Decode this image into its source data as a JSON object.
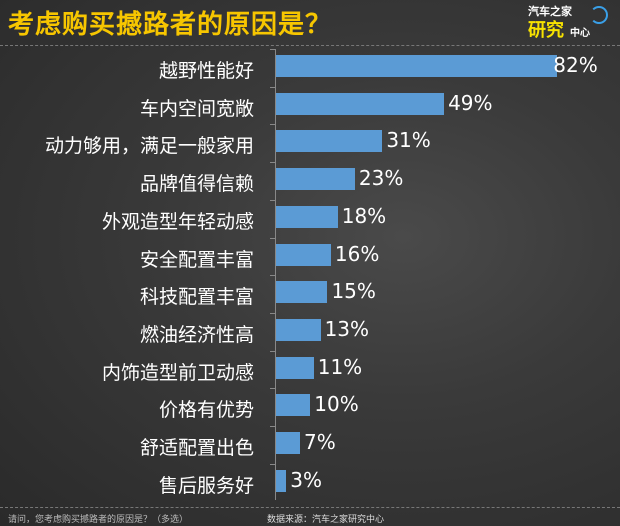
{
  "header": {
    "title": "考虑购买撼路者的原因是？",
    "logo": {
      "line1": "汽车之家",
      "line2": "研究",
      "line3": "中心"
    }
  },
  "footer": {
    "question": "请问，您考虑购买撼路者的原因是？（多选）",
    "source": "数据来源：汽车之家研究中心"
  },
  "colors": {
    "bar": "#5b9bd5",
    "title": "#f7c600",
    "background": "#3a3a3a"
  },
  "chart_data": {
    "type": "bar",
    "orientation": "horizontal",
    "title": "考虑购买撼路者的原因是？",
    "xlabel": "",
    "ylabel": "",
    "categories": [
      "越野性能好",
      "车内空间宽敞",
      "动力够用，满足一般家用",
      "品牌值得信赖",
      "外观造型年轻动感",
      "安全配置丰富",
      "科技配置丰富",
      "燃油经济性高",
      "内饰造型前卫动感",
      "价格有优势",
      "舒适配置出色",
      "售后服务好"
    ],
    "values": [
      82,
      49,
      31,
      23,
      18,
      16,
      15,
      13,
      11,
      10,
      7,
      3
    ],
    "value_labels": [
      "82%",
      "49%",
      "31%",
      "23%",
      "18%",
      "16%",
      "15%",
      "13%",
      "11%",
      "10%",
      "7%",
      "3%"
    ],
    "unit": "%",
    "xlim": [
      0,
      100
    ],
    "grid": false,
    "legend": null
  }
}
